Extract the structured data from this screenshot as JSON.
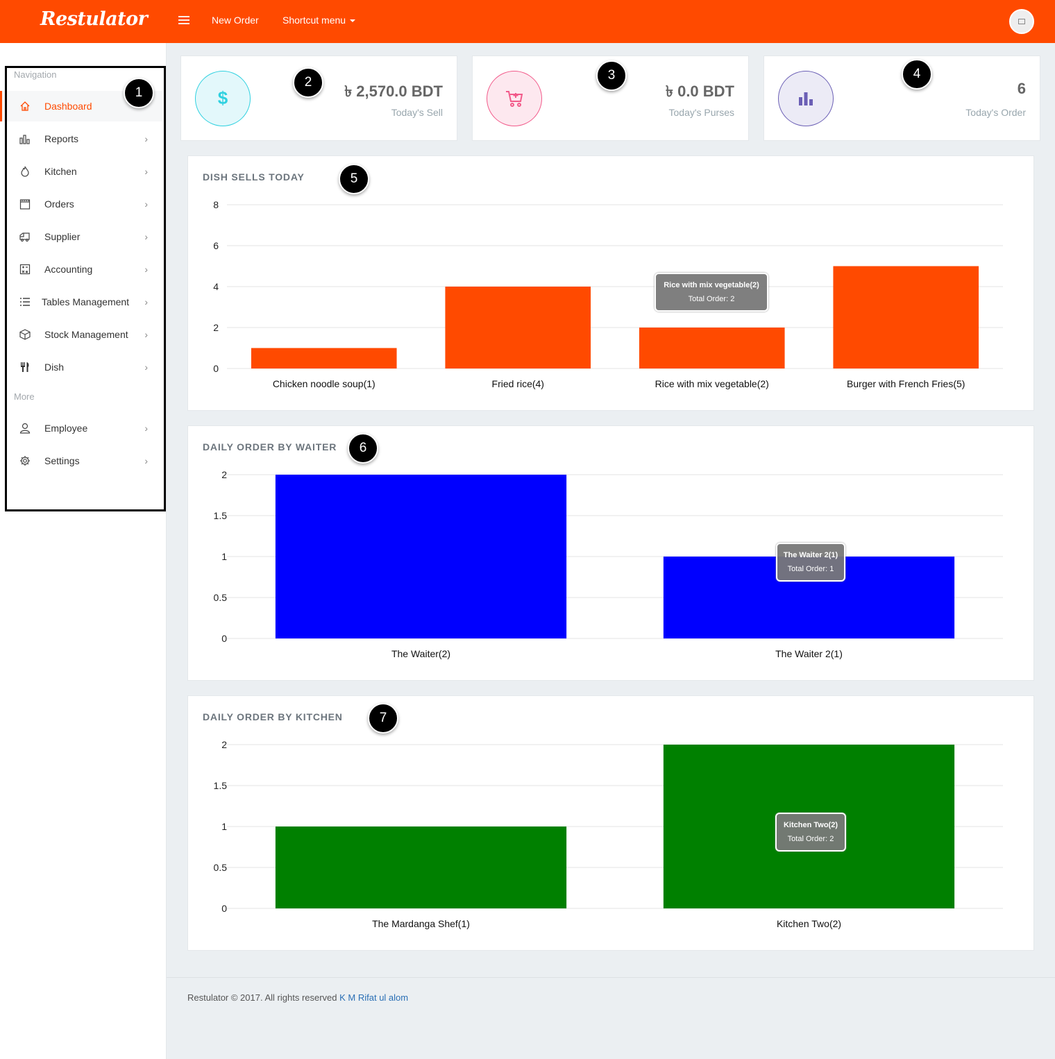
{
  "app": {
    "logo": "Restulator",
    "top_links": [
      "New Order",
      "Shortcut menu"
    ],
    "brand_color": "#ff4a00"
  },
  "sidebar": {
    "heading_navigation": "Navigation",
    "heading_more": "More",
    "items": [
      {
        "label": "Dashboard",
        "icon": "home-icon",
        "active": true
      },
      {
        "label": "Reports",
        "icon": "bar-chart-icon"
      },
      {
        "label": "Kitchen",
        "icon": "flame-icon"
      },
      {
        "label": "Orders",
        "icon": "calendar-icon"
      },
      {
        "label": "Supplier",
        "icon": "truck-icon"
      },
      {
        "label": "Accounting",
        "icon": "calculator-icon"
      },
      {
        "label": "Tables Management",
        "icon": "list-icon"
      },
      {
        "label": "Stock Management",
        "icon": "box-icon"
      },
      {
        "label": "Dish",
        "icon": "cutlery-icon"
      }
    ],
    "more_items": [
      {
        "label": "Employee",
        "icon": "user-icon"
      },
      {
        "label": "Settings",
        "icon": "gear-icon"
      }
    ]
  },
  "stats": [
    {
      "value": "৳ 2,570.0 BDT",
      "label": "Today's Sell",
      "icon": "dollar-icon",
      "color": "#2fd1e0"
    },
    {
      "value": "৳ 0.0 BDT",
      "label": "Today's Purses",
      "icon": "cart-icon",
      "color": "#f25a8a"
    },
    {
      "value": "6",
      "label": "Today's Order",
      "icon": "bar-chart-icon",
      "color": "#6b5fb5"
    }
  ],
  "badges": [
    "1",
    "2",
    "3",
    "4",
    "5",
    "6",
    "7"
  ],
  "charts": {
    "dish": {
      "title": "DISH SELLS TODAY",
      "tooltip_title": "Rice with mix vegetable(2)",
      "tooltip_body": "Total Order: 2"
    },
    "waiter": {
      "title": "DAILY ORDER BY WAITER",
      "tooltip_title": "The Waiter 2(1)",
      "tooltip_body": "Total Order: 1"
    },
    "kitchen": {
      "title": "DAILY ORDER BY KITCHEN",
      "tooltip_title": "Kitchen Two(2)",
      "tooltip_body": "Total Order: 2"
    }
  },
  "chart_data": [
    {
      "type": "bar",
      "title": "DISH SELLS TODAY",
      "categories": [
        "Chicken noodle soup(1)",
        "Fried rice(4)",
        "Rice with mix vegetable(2)",
        "Burger with French Fries(5)"
      ],
      "values": [
        1,
        4,
        2,
        5
      ],
      "yticks": [
        "0",
        "2",
        "4",
        "6",
        "8"
      ],
      "ylim": [
        0,
        8
      ],
      "color": "#ff4a00",
      "grid": true
    },
    {
      "type": "bar",
      "title": "DAILY ORDER BY WAITER",
      "categories": [
        "The Waiter(2)",
        "The Waiter 2(1)"
      ],
      "values": [
        2,
        1
      ],
      "yticks": [
        "0",
        "0.5",
        "1",
        "1.5",
        "2"
      ],
      "ylim": [
        0,
        2
      ],
      "color": "#0000ff",
      "grid": true
    },
    {
      "type": "bar",
      "title": "DAILY ORDER BY KITCHEN",
      "categories": [
        "The Mardanga Shef(1)",
        "Kitchen Two(2)"
      ],
      "values": [
        1,
        2
      ],
      "yticks": [
        "0",
        "0.5",
        "1",
        "1.5",
        "2"
      ],
      "ylim": [
        0,
        2
      ],
      "color": "#008000",
      "grid": true
    }
  ],
  "footer": {
    "text": "Restulator © 2017. All rights reserved ",
    "author": "K M Rifat ul alom"
  }
}
